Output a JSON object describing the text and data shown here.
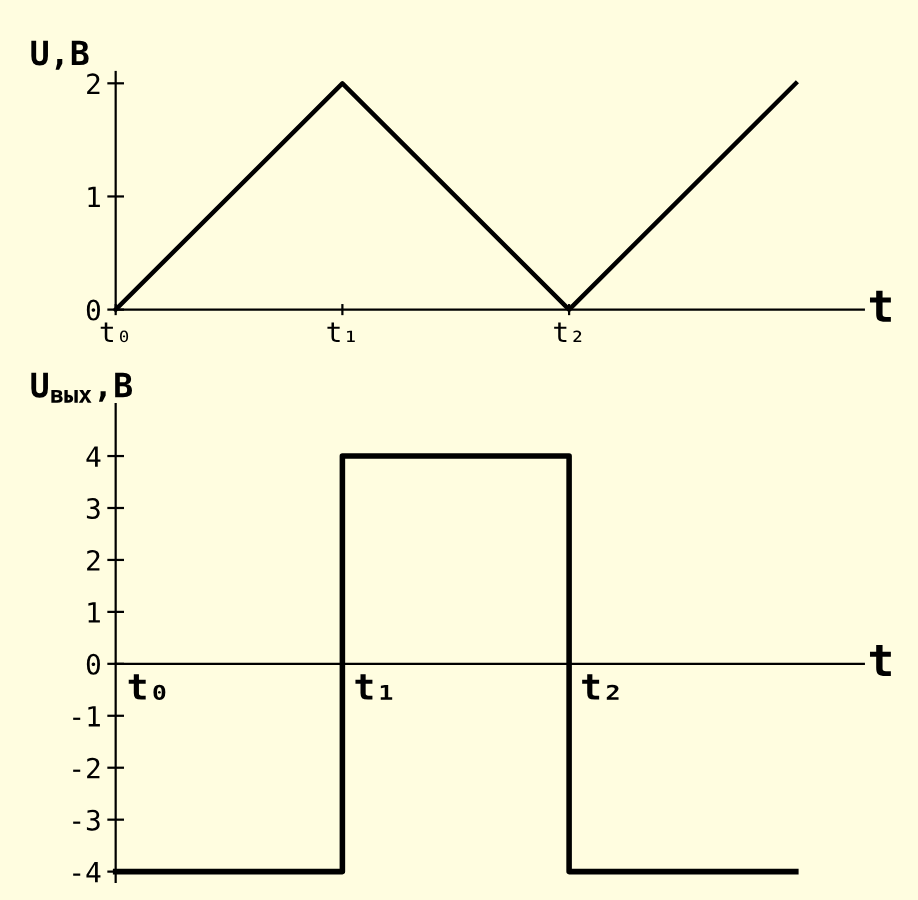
{
  "chart_data": [
    {
      "type": "line",
      "ylabel": "U,B",
      "xlabel": "t",
      "categories": [
        "t₀",
        "t₁",
        "t₂",
        null
      ],
      "ylim": [
        0,
        2.1
      ],
      "yticks": [
        0,
        1,
        2
      ],
      "series": [
        {
          "color": "#000000",
          "values": [
            0,
            2,
            0,
            2
          ]
        }
      ],
      "grid": false,
      "marker": "none",
      "line_style": "solid"
    },
    {
      "type": "step",
      "ylabel": "U$_{вых}$,B",
      "xlabel": "t",
      "categories": [
        "t₀",
        "t₁",
        "t₂",
        null
      ],
      "ylim": [
        -4.2,
        5.0
      ],
      "yticks": [
        -4,
        -3,
        -2,
        -1,
        0,
        1,
        2,
        3,
        4
      ],
      "series": [
        {
          "color": "#000000",
          "values": [
            -4,
            4,
            -4,
            -4
          ]
        }
      ],
      "grid": false,
      "marker": "none",
      "line_style": "solid"
    }
  ]
}
